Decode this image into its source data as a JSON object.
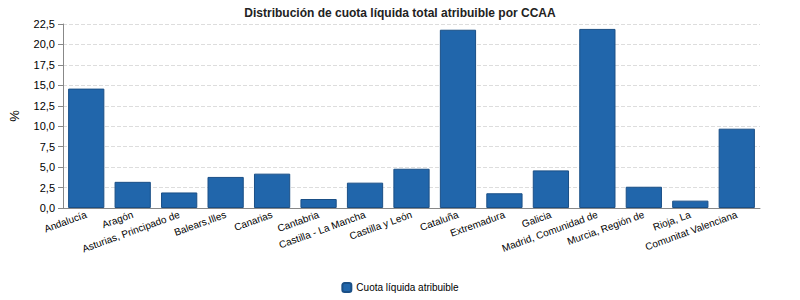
{
  "chart_data": {
    "type": "bar",
    "title": "Distribución de cuota líquida total atribuible por CCAA",
    "y_label": "%",
    "categories": [
      "Andalucía",
      "Aragón",
      "Asturias, Principado de",
      "Balears,Illes",
      "Canarias",
      "Cantabria",
      "Castilla - La Mancha",
      "Castilla y León",
      "Cataluña",
      "Extremadura",
      "Galicia",
      "Madrid, Comunidad de",
      "Murcia, Región de",
      "Rioja, La",
      "Comunitat Valenciana"
    ],
    "series": [
      {
        "name": "Cuota líquida atribuible",
        "color": "#2166ab",
        "values": [
          14.6,
          3.2,
          1.9,
          3.8,
          4.2,
          1.1,
          3.1,
          4.8,
          21.8,
          1.8,
          4.6,
          21.9,
          2.6,
          0.9,
          9.7
        ]
      }
    ],
    "ylim": [
      0,
      22.5
    ],
    "yticks": [
      {
        "value": 0,
        "label": "0,0"
      },
      {
        "value": 2.5,
        "label": "2,5"
      },
      {
        "value": 5,
        "label": "5,0"
      },
      {
        "value": 7.5,
        "label": "7,5"
      },
      {
        "value": 10,
        "label": "10,0"
      },
      {
        "value": 12.5,
        "label": "12,5"
      },
      {
        "value": 15,
        "label": "15,0"
      },
      {
        "value": 17.5,
        "label": "17,5"
      },
      {
        "value": 20,
        "label": "20,0"
      },
      {
        "value": 22.5,
        "label": "22,5"
      }
    ],
    "grid": true,
    "legend": "bottom"
  }
}
